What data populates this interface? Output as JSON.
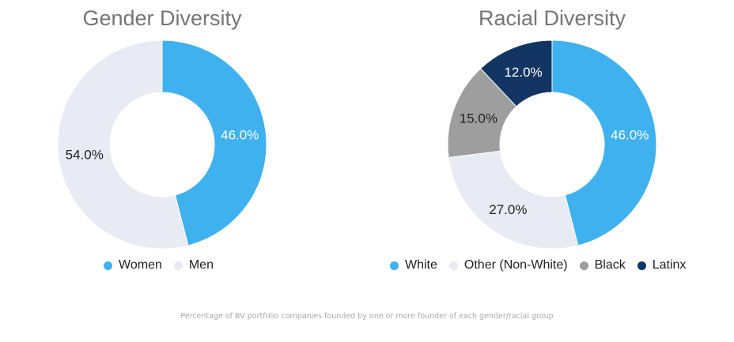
{
  "charts": {
    "gender": {
      "title": "Gender Diversity",
      "legend": [
        {
          "label": "Women",
          "color": "#3FB1EE"
        },
        {
          "label": "Men",
          "color": "#E8EAF4"
        }
      ]
    },
    "racial": {
      "title": "Racial Diversity",
      "legend": [
        {
          "label": "White",
          "color": "#3FB1EE"
        },
        {
          "label": "Other (Non-White)",
          "color": "#E8EAF4"
        },
        {
          "label": "Black",
          "color": "#9E9E9E"
        },
        {
          "label": "Latinx",
          "color": "#133563"
        }
      ]
    }
  },
  "caption": "Percentage of BV portfolio companies founded by one or more founder of each gender/racial group",
  "chart_data": [
    {
      "type": "pie",
      "subtype": "donut",
      "title": "Gender Diversity",
      "categories": [
        "Women",
        "Men"
      ],
      "values": [
        46.0,
        54.0
      ],
      "labels": [
        "46.0%",
        "54.0%"
      ],
      "colors": [
        "#3FB1EE",
        "#E8EAF4"
      ],
      "label_colors": [
        "#ffffff",
        "#222222"
      ],
      "legend_position": "bottom",
      "start_angle_deg": 0,
      "direction": "clockwise"
    },
    {
      "type": "pie",
      "subtype": "donut",
      "title": "Racial Diversity",
      "categories": [
        "White",
        "Other (Non-White)",
        "Black",
        "Latinx"
      ],
      "values": [
        46.0,
        27.0,
        15.0,
        12.0
      ],
      "labels": [
        "46.0%",
        "27.0%",
        "15.0%",
        "12.0%"
      ],
      "colors": [
        "#3FB1EE",
        "#E8EAF4",
        "#9E9E9E",
        "#133563"
      ],
      "label_colors": [
        "#ffffff",
        "#222222",
        "#222222",
        "#ffffff"
      ],
      "legend_position": "bottom",
      "start_angle_deg": 0,
      "direction": "clockwise"
    }
  ]
}
